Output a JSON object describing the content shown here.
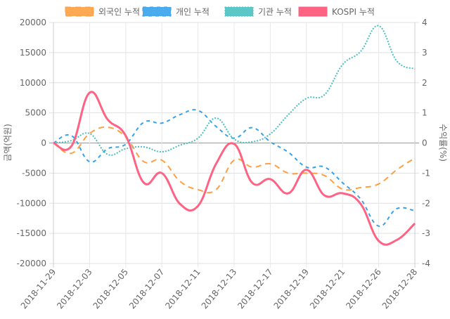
{
  "chart_data": {
    "type": "line",
    "title": "",
    "x": [
      "2018-11-29",
      "2018-11-30",
      "2018-12-03",
      "2018-12-04",
      "2018-12-05",
      "2018-12-06",
      "2018-12-07",
      "2018-12-10",
      "2018-12-11",
      "2018-12-12",
      "2018-12-13",
      "2018-12-14",
      "2018-12-17",
      "2018-12-18",
      "2018-12-19",
      "2018-12-20",
      "2018-12-21",
      "2018-12-24",
      "2018-12-26",
      "2018-12-27",
      "2018-12-28"
    ],
    "x_tick_labels": [
      "2018-11-29",
      "2018-12-03",
      "2018-12-05",
      "2018-12-07",
      "2018-12-11",
      "2018-12-13",
      "2018-12-17",
      "2018-12-19",
      "2018-12-21",
      "2018-12-26",
      "2018-12-28"
    ],
    "ylabel": "금액(억원)",
    "y2label": "수익률(%)",
    "ylim": [
      -20000,
      20000
    ],
    "y2lim": [
      -4,
      4
    ],
    "y_ticks": [
      "20000",
      "15000",
      "10000",
      "5000",
      "0",
      "-5000",
      "-10000",
      "-15000",
      "-20000"
    ],
    "y2_ticks": [
      "4",
      "3",
      "2",
      "1",
      "0",
      "-1",
      "-2",
      "-3",
      "-4"
    ],
    "grid": true,
    "legend_position": "top",
    "series": [
      {
        "name": "외국인 누적",
        "axis": "left",
        "color": "#ff9f40",
        "style": "dashed",
        "values": [
          0,
          -1700,
          1570,
          2600,
          1000,
          -3100,
          -2860,
          -6350,
          -7750,
          -7750,
          -2860,
          -4000,
          -3450,
          -5000,
          -5000,
          -5400,
          -7650,
          -7400,
          -6800,
          -4450,
          -2500
        ]
      },
      {
        "name": "개인 누적",
        "axis": "left",
        "color": "#36a2eb",
        "style": "dashed-short",
        "values": [
          0,
          1220,
          -3100,
          -950,
          -200,
          3440,
          3300,
          4700,
          5400,
          2740,
          800,
          2550,
          200,
          -1540,
          -4000,
          -4000,
          -6600,
          -9300,
          -13800,
          -10900,
          -11250
        ]
      },
      {
        "name": "기관 누적",
        "axis": "left",
        "color": "#4bc0c0",
        "style": "dotted",
        "values": [
          0,
          400,
          1570,
          -1900,
          -950,
          -650,
          -1460,
          -370,
          800,
          4140,
          640,
          200,
          1500,
          4700,
          7400,
          8000,
          13000,
          15200,
          19450,
          13600,
          12300
        ]
      },
      {
        "name": "KOSPI 누적",
        "axis": "right",
        "color": "#ff6384",
        "style": "solid",
        "values": [
          0,
          -0.1,
          1.67,
          0.78,
          0.24,
          -1.32,
          -1.0,
          -2.02,
          -2.09,
          -0.69,
          -0.03,
          -1.32,
          -1.2,
          -1.67,
          -0.89,
          -1.74,
          -1.67,
          -2.02,
          -3.25,
          -3.22,
          -2.67
        ]
      }
    ]
  }
}
